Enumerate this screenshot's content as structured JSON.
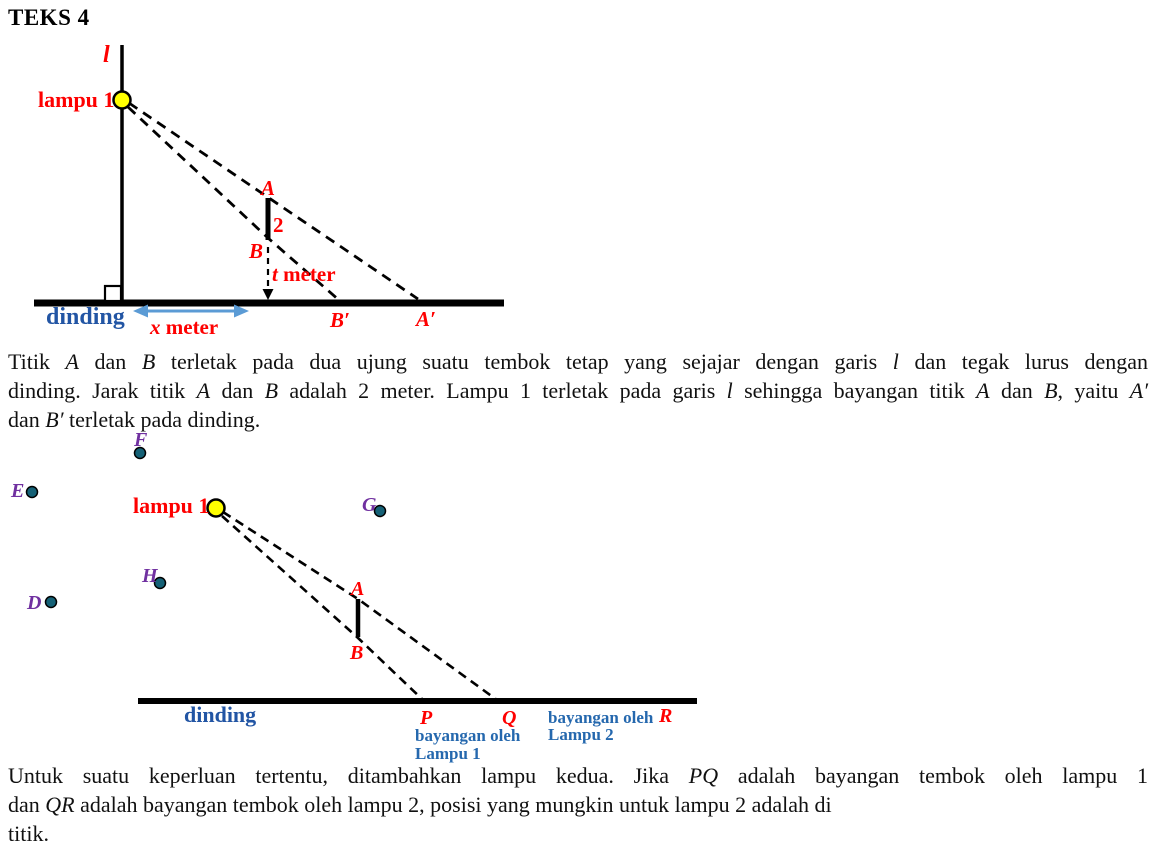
{
  "title": "TEKS 4",
  "colors": {
    "label_red": "#fe0000",
    "wall_text_blue": "#2255a4",
    "shadow_text_blue": "#2568ae",
    "point_label_purple": "#7030a0",
    "point_dot_teal": "#156176",
    "lamp_yellow": "#ffff00",
    "arrow_blue": "#5b9bd5",
    "ink_black": "#000000"
  },
  "diagram1": {
    "line_label": "l",
    "lamp_label": "lampu 1",
    "point_a": "A",
    "wall_length": "2",
    "point_b": "B",
    "t_var": "t",
    "t_unit": " meter",
    "shadow_b": "B′",
    "shadow_a": "A′",
    "wall_label": "dinding",
    "x_var": "x",
    "x_unit": " meter"
  },
  "diagram2": {
    "lamp_label": "lampu 1",
    "points": {
      "D": "D",
      "E": "E",
      "F": "F",
      "G": "G",
      "H": "H"
    },
    "point_a": "A",
    "point_b": "B",
    "wall_label": "dinding",
    "p": "P",
    "q": "Q",
    "r": "R",
    "shadow1_line1": "bayangan oleh",
    "shadow1_line2": "Lampu 1",
    "shadow2_line1": "bayangan oleh",
    "shadow2_line2": "Lampu 2"
  },
  "paragraph1": {
    "lines": [
      {
        "justify": true,
        "segments": [
          {
            "t": "Titik "
          },
          {
            "t": "A",
            "i": true
          },
          {
            "t": " dan "
          },
          {
            "t": "B",
            "i": true
          },
          {
            "t": " terletak pada dua ujung suatu tembok tetap yang sejajar dengan garis "
          },
          {
            "t": "l",
            "i": true
          },
          {
            "t": " dan tegak lurus dengan"
          }
        ]
      },
      {
        "justify": true,
        "segments": [
          {
            "t": "dinding. Jarak titik "
          },
          {
            "t": "A",
            "i": true
          },
          {
            "t": " dan "
          },
          {
            "t": "B",
            "i": true
          },
          {
            "t": " adalah 2 meter. Lampu 1 terletak pada garis "
          },
          {
            "t": "l",
            "i": true
          },
          {
            "t": " sehingga bayangan titik "
          },
          {
            "t": "A",
            "i": true
          },
          {
            "t": " dan "
          },
          {
            "t": "B",
            "i": true
          },
          {
            "t": ", yaitu "
          },
          {
            "t": "A′",
            "i": true
          }
        ]
      },
      {
        "justify": false,
        "segments": [
          {
            "t": "dan "
          },
          {
            "t": "B′",
            "i": true
          },
          {
            "t": " terletak pada dinding."
          }
        ]
      }
    ]
  },
  "paragraph2": {
    "lines": [
      {
        "justify": true,
        "segments": [
          {
            "t": "Untuk suatu keperluan tertentu, ditambahkan lampu kedua. Jika "
          },
          {
            "t": "PQ",
            "i": true
          },
          {
            "t": " adalah bayangan tembok oleh lampu 1"
          }
        ]
      },
      {
        "justify": false,
        "segments": [
          {
            "t": "dan "
          },
          {
            "t": "QR",
            "i": true
          },
          {
            "t": " adalah bayangan tembok oleh lampu 2, posisi yang mungkin untuk lampu 2 adalah di"
          }
        ]
      },
      {
        "justify": false,
        "segments": [
          {
            "t": "titik."
          }
        ]
      }
    ]
  }
}
